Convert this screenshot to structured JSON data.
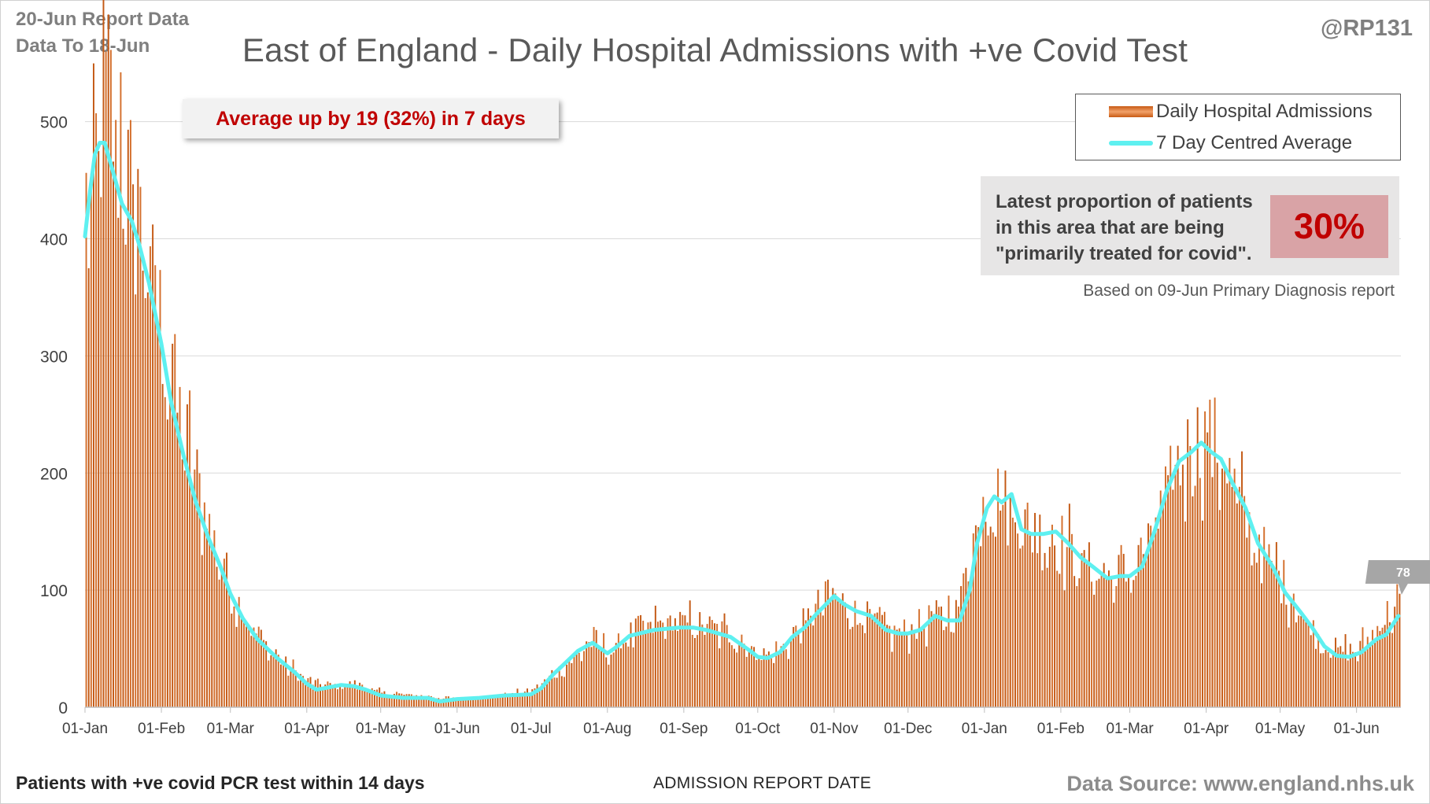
{
  "header": {
    "report_line1": "20-Jun Report Data",
    "report_line2": "Data To 18-Jun",
    "handle": "@RP131"
  },
  "callout_text": "Average up by 19 (32%) in 7 days",
  "proportion_box": {
    "text_lines": [
      "Latest proportion of patients",
      "in this area that are being",
      "\"primarily treated for covid\"."
    ],
    "value": "30%",
    "note": "Based on 09-Jun Primary Diagnosis report"
  },
  "footer": {
    "left": "Patients with +ve covid PCR test within 14 days",
    "mid": "ADMISSION REPORT DATE",
    "right": "Data Source: www.england.nhs.uk"
  },
  "colors": {
    "bar": "#c65a16",
    "bar_light": "#f4a66c",
    "average_line": "#5ef0f0",
    "accent_red": "#c00000"
  },
  "chart_data": {
    "type": "bar",
    "title": "East of England - Daily Hospital Admissions with +ve Covid Test",
    "xlabel": "ADMISSION REPORT DATE",
    "ylabel": "",
    "ylim": [
      0,
      530
    ],
    "yticks": [
      0,
      100,
      200,
      300,
      400,
      500
    ],
    "grid": "horizontal",
    "legend_position": "top-right",
    "x_start": "2021-01-01",
    "x_end": "2022-06-18",
    "x_tick_dates": [
      "2021-01-01",
      "2021-02-01",
      "2021-03-01",
      "2021-04-01",
      "2021-05-01",
      "2021-06-01",
      "2021-07-01",
      "2021-08-01",
      "2021-09-01",
      "2021-10-01",
      "2021-11-01",
      "2021-12-01",
      "2022-01-01",
      "2022-02-01",
      "2022-03-01",
      "2022-04-01",
      "2022-05-01",
      "2022-06-01"
    ],
    "x_tick_labels": [
      "01-Jan",
      "01-Feb",
      "01-Mar",
      "01-Apr",
      "01-May",
      "01-Jun",
      "01-Jul",
      "01-Aug",
      "01-Sep",
      "01-Oct",
      "01-Nov",
      "01-Dec",
      "01-Jan",
      "01-Feb",
      "01-Mar",
      "01-Apr",
      "01-May",
      "01-Jun"
    ],
    "series": [
      {
        "name": "Daily Hospital Admissions",
        "kind": "bar",
        "anchors": [
          [
            "2021-01-01",
            385
          ],
          [
            "2021-01-04",
            455
          ],
          [
            "2021-01-07",
            505
          ],
          [
            "2021-01-10",
            520
          ],
          [
            "2021-01-14",
            480
          ],
          [
            "2021-01-18",
            440
          ],
          [
            "2021-01-22",
            415
          ],
          [
            "2021-01-26",
            375
          ],
          [
            "2021-02-01",
            320
          ],
          [
            "2021-02-07",
            255
          ],
          [
            "2021-02-14",
            200
          ],
          [
            "2021-02-21",
            145
          ],
          [
            "2021-03-01",
            100
          ],
          [
            "2021-03-08",
            72
          ],
          [
            "2021-03-15",
            52
          ],
          [
            "2021-03-22",
            38
          ],
          [
            "2021-04-01",
            22
          ],
          [
            "2021-04-10",
            18
          ],
          [
            "2021-04-20",
            20
          ],
          [
            "2021-05-01",
            12
          ],
          [
            "2021-05-15",
            10
          ],
          [
            "2021-06-01",
            7
          ],
          [
            "2021-06-15",
            9
          ],
          [
            "2021-06-25",
            12
          ],
          [
            "2021-07-01",
            14
          ],
          [
            "2021-07-10",
            28
          ],
          [
            "2021-07-20",
            45
          ],
          [
            "2021-07-26",
            58
          ],
          [
            "2021-08-01",
            45
          ],
          [
            "2021-08-10",
            62
          ],
          [
            "2021-08-20",
            70
          ],
          [
            "2021-09-01",
            72
          ],
          [
            "2021-09-10",
            68
          ],
          [
            "2021-09-20",
            62
          ],
          [
            "2021-10-01",
            45
          ],
          [
            "2021-10-08",
            45
          ],
          [
            "2021-10-15",
            60
          ],
          [
            "2021-10-25",
            85
          ],
          [
            "2021-11-01",
            96
          ],
          [
            "2021-11-08",
            80
          ],
          [
            "2021-11-18",
            72
          ],
          [
            "2021-11-25",
            62
          ],
          [
            "2021-12-01",
            65
          ],
          [
            "2021-12-10",
            75
          ],
          [
            "2021-12-20",
            80
          ],
          [
            "2021-12-26",
            135
          ],
          [
            "2021-12-31",
            175
          ],
          [
            "2022-01-05",
            180
          ],
          [
            "2022-01-10",
            170
          ],
          [
            "2022-01-20",
            150
          ],
          [
            "2022-02-01",
            140
          ],
          [
            "2022-02-10",
            120
          ],
          [
            "2022-02-20",
            110
          ],
          [
            "2022-03-01",
            115
          ],
          [
            "2022-03-10",
            145
          ],
          [
            "2022-03-20",
            205
          ],
          [
            "2022-03-30",
            230
          ],
          [
            "2022-04-05",
            220
          ],
          [
            "2022-04-12",
            185
          ],
          [
            "2022-04-20",
            140
          ],
          [
            "2022-05-01",
            110
          ],
          [
            "2022-05-10",
            75
          ],
          [
            "2022-05-20",
            50
          ],
          [
            "2022-06-01",
            48
          ],
          [
            "2022-06-08",
            65
          ],
          [
            "2022-06-14",
            82
          ],
          [
            "2022-06-18",
            85
          ]
        ]
      },
      {
        "name": "7 Day Centred Average",
        "kind": "line",
        "points": [
          [
            "2021-01-01",
            402
          ],
          [
            "2021-01-03",
            440
          ],
          [
            "2021-01-05",
            472
          ],
          [
            "2021-01-07",
            482
          ],
          [
            "2021-01-09",
            482
          ],
          [
            "2021-01-12",
            460
          ],
          [
            "2021-01-16",
            430
          ],
          [
            "2021-01-20",
            415
          ],
          [
            "2021-01-23",
            395
          ],
          [
            "2021-01-27",
            362
          ],
          [
            "2021-02-01",
            310
          ],
          [
            "2021-02-05",
            260
          ],
          [
            "2021-02-10",
            215
          ],
          [
            "2021-02-15",
            175
          ],
          [
            "2021-02-20",
            145
          ],
          [
            "2021-02-25",
            120
          ],
          [
            "2021-03-01",
            97
          ],
          [
            "2021-03-06",
            76
          ],
          [
            "2021-03-12",
            58
          ],
          [
            "2021-03-20",
            42
          ],
          [
            "2021-03-27",
            30
          ],
          [
            "2021-04-01",
            20
          ],
          [
            "2021-04-05",
            15
          ],
          [
            "2021-04-10",
            17
          ],
          [
            "2021-04-15",
            19
          ],
          [
            "2021-04-20",
            18
          ],
          [
            "2021-04-25",
            15
          ],
          [
            "2021-05-01",
            10
          ],
          [
            "2021-05-10",
            8
          ],
          [
            "2021-05-20",
            8
          ],
          [
            "2021-05-25",
            5
          ],
          [
            "2021-06-01",
            7
          ],
          [
            "2021-06-10",
            8
          ],
          [
            "2021-06-20",
            10
          ],
          [
            "2021-07-01",
            11
          ],
          [
            "2021-07-05",
            16
          ],
          [
            "2021-07-10",
            28
          ],
          [
            "2021-07-15",
            38
          ],
          [
            "2021-07-20",
            48
          ],
          [
            "2021-07-26",
            55
          ],
          [
            "2021-08-01",
            46
          ],
          [
            "2021-08-05",
            52
          ],
          [
            "2021-08-10",
            61
          ],
          [
            "2021-08-20",
            66
          ],
          [
            "2021-08-30",
            68
          ],
          [
            "2021-09-05",
            68
          ],
          [
            "2021-09-10",
            66
          ],
          [
            "2021-09-20",
            60
          ],
          [
            "2021-09-28",
            48
          ],
          [
            "2021-10-01",
            43
          ],
          [
            "2021-10-05",
            42
          ],
          [
            "2021-10-10",
            47
          ],
          [
            "2021-10-15",
            60
          ],
          [
            "2021-10-20",
            68
          ],
          [
            "2021-10-25",
            80
          ],
          [
            "2021-11-01",
            95
          ],
          [
            "2021-11-05",
            88
          ],
          [
            "2021-11-10",
            82
          ],
          [
            "2021-11-16",
            78
          ],
          [
            "2021-11-22",
            66
          ],
          [
            "2021-11-27",
            63
          ],
          [
            "2021-12-01",
            63
          ],
          [
            "2021-12-06",
            66
          ],
          [
            "2021-12-12",
            78
          ],
          [
            "2021-12-17",
            74
          ],
          [
            "2021-12-22",
            74
          ],
          [
            "2021-12-26",
            100
          ],
          [
            "2021-12-29",
            140
          ],
          [
            "2022-01-02",
            170
          ],
          [
            "2022-01-05",
            180
          ],
          [
            "2022-01-08",
            175
          ],
          [
            "2022-01-12",
            182
          ],
          [
            "2022-01-16",
            152
          ],
          [
            "2022-01-20",
            148
          ],
          [
            "2022-01-25",
            148
          ],
          [
            "2022-01-30",
            150
          ],
          [
            "2022-02-04",
            140
          ],
          [
            "2022-02-09",
            128
          ],
          [
            "2022-02-14",
            120
          ],
          [
            "2022-02-20",
            110
          ],
          [
            "2022-02-25",
            112
          ],
          [
            "2022-03-01",
            112
          ],
          [
            "2022-03-06",
            120
          ],
          [
            "2022-03-11",
            150
          ],
          [
            "2022-03-16",
            185
          ],
          [
            "2022-03-21",
            210
          ],
          [
            "2022-03-26",
            218
          ],
          [
            "2022-03-30",
            226
          ],
          [
            "2022-04-03",
            218
          ],
          [
            "2022-04-07",
            212
          ],
          [
            "2022-04-12",
            190
          ],
          [
            "2022-04-17",
            170
          ],
          [
            "2022-04-22",
            140
          ],
          [
            "2022-04-28",
            120
          ],
          [
            "2022-05-03",
            98
          ],
          [
            "2022-05-09",
            82
          ],
          [
            "2022-05-14",
            68
          ],
          [
            "2022-05-19",
            52
          ],
          [
            "2022-05-24",
            44
          ],
          [
            "2022-05-29",
            43
          ],
          [
            "2022-06-03",
            47
          ],
          [
            "2022-06-09",
            58
          ],
          [
            "2022-06-13",
            62
          ],
          [
            "2022-06-18",
            78
          ]
        ]
      }
    ],
    "annotations": [
      {
        "date": "2022-06-18",
        "label": "78"
      }
    ]
  }
}
